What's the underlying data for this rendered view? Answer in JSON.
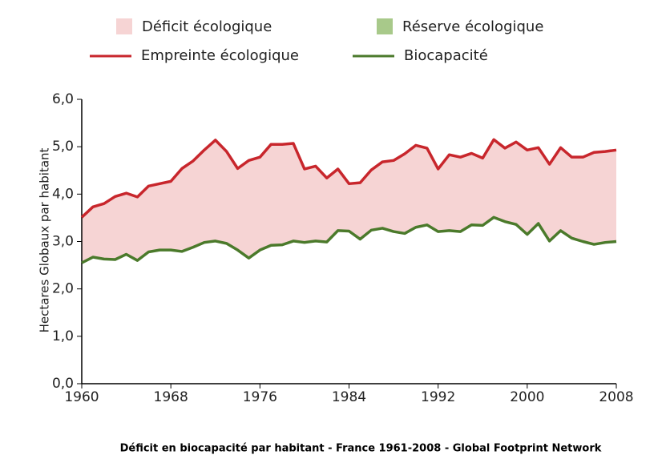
{
  "chart_data": {
    "type": "line",
    "caption": "Déficit en biocapacité par habitant - France 1961-2008 - Global Footprint Network",
    "y_label": "Hectares Globaux par habitant",
    "x": [
      1960,
      1961,
      1962,
      1963,
      1964,
      1965,
      1966,
      1967,
      1968,
      1969,
      1970,
      1971,
      1972,
      1973,
      1974,
      1975,
      1976,
      1977,
      1978,
      1979,
      1980,
      1981,
      1982,
      1983,
      1984,
      1985,
      1986,
      1987,
      1988,
      1989,
      1990,
      1991,
      1992,
      1993,
      1994,
      1995,
      1996,
      1997,
      1998,
      1999,
      2000,
      2001,
      2002,
      2003,
      2004,
      2005,
      2006,
      2007,
      2008
    ],
    "series": [
      {
        "name": "Empreinte écologique",
        "color": "#c8262c",
        "values": [
          3.51,
          3.73,
          3.8,
          3.95,
          4.02,
          3.94,
          4.17,
          4.22,
          4.27,
          4.54,
          4.7,
          4.93,
          5.14,
          4.9,
          4.54,
          4.71,
          4.78,
          5.05,
          5.05,
          5.07,
          4.53,
          4.59,
          4.34,
          4.53,
          4.22,
          4.24,
          4.51,
          4.68,
          4.71,
          4.85,
          5.03,
          4.97,
          4.53,
          4.83,
          4.78,
          4.86,
          4.76,
          5.15,
          4.97,
          5.1,
          4.93,
          4.98,
          4.63,
          4.98,
          4.78,
          4.78,
          4.88,
          4.9,
          4.93
        ]
      },
      {
        "name": "Biocapacité",
        "color": "#4b7a2b",
        "values": [
          2.55,
          2.67,
          2.63,
          2.62,
          2.73,
          2.6,
          2.78,
          2.82,
          2.82,
          2.79,
          2.88,
          2.98,
          3.01,
          2.96,
          2.82,
          2.65,
          2.82,
          2.92,
          2.93,
          3.01,
          2.98,
          3.01,
          2.99,
          3.23,
          3.22,
          3.05,
          3.24,
          3.28,
          3.21,
          3.17,
          3.3,
          3.35,
          3.21,
          3.23,
          3.21,
          3.35,
          3.34,
          3.51,
          3.42,
          3.36,
          3.15,
          3.38,
          3.01,
          3.23,
          3.07,
          3.0,
          2.94,
          2.98,
          3.0
        ]
      }
    ],
    "areas": [
      {
        "name": "Déficit écologique",
        "color": "#f6d4d4"
      },
      {
        "name": "Réserve écologique",
        "color": "#a8c98a"
      }
    ],
    "xlim": [
      1960,
      2008
    ],
    "xticks": [
      1960,
      1968,
      1976,
      1984,
      1992,
      2000,
      2008
    ],
    "ylim": [
      0,
      6
    ],
    "yticks": [
      {
        "value": 0,
        "label": "0,0"
      },
      {
        "value": 1,
        "label": "1,0"
      },
      {
        "value": 2,
        "label": "2,0"
      },
      {
        "value": 3,
        "label": "3,0"
      },
      {
        "value": 4,
        "label": "4,0"
      },
      {
        "value": 5,
        "label": "5,0"
      },
      {
        "value": 6,
        "label": "6,0"
      }
    ],
    "grid": false
  }
}
